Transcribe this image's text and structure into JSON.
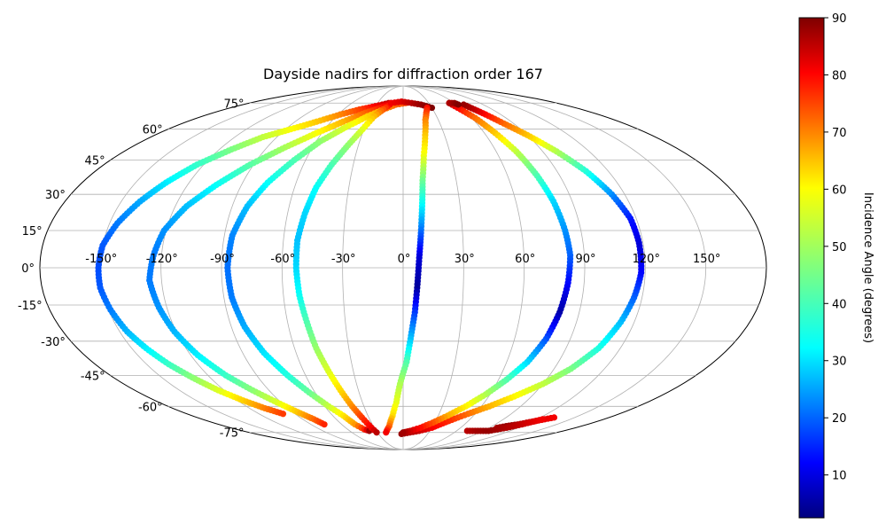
{
  "chart_data": {
    "type": "scatter",
    "projection": "mollweide",
    "title": "Dayside nadirs for diffraction order 167",
    "grid": true,
    "colormap": "jet",
    "colorbar": {
      "label": "Incidence Angle (degrees)",
      "range": [
        2.5,
        90
      ],
      "ticks": [
        "10",
        "20",
        "30",
        "40",
        "50",
        "60",
        "70",
        "80",
        "90"
      ],
      "tick_values": [
        10,
        20,
        30,
        40,
        50,
        60,
        70,
        80,
        90
      ],
      "placement": "right"
    },
    "lon_ticks": [
      "-150°",
      "-120°",
      "-90°",
      "-60°",
      "-30°",
      "0°",
      "30°",
      "60°",
      "90°",
      "120°",
      "150°"
    ],
    "lon_tick_values": [
      -150,
      -120,
      -90,
      -60,
      -30,
      0,
      30,
      60,
      90,
      120,
      150
    ],
    "lat_ticks": [
      "75°",
      "60°",
      "45°",
      "30°",
      "15°",
      "0°",
      "-15°",
      "-30°",
      "-45°",
      "-60°",
      "-75°"
    ],
    "lat_tick_values": [
      75,
      60,
      45,
      30,
      15,
      0,
      -15,
      -30,
      -45,
      -60,
      -75
    ],
    "series": [
      {
        "points": [
          [
            -17,
            75,
            85
          ],
          [
            -30,
            73,
            80
          ],
          [
            -44,
            71,
            74
          ],
          [
            -58,
            68,
            68
          ],
          [
            -72,
            64,
            62
          ],
          [
            -86,
            60,
            57
          ],
          [
            -100,
            56,
            52
          ],
          [
            -112,
            50,
            46
          ],
          [
            -124,
            43,
            40
          ],
          [
            -133,
            35,
            34
          ],
          [
            -140,
            27,
            28
          ],
          [
            -146,
            18,
            24
          ],
          [
            -150,
            9,
            21
          ],
          [
            -151,
            0,
            20
          ],
          [
            -151,
            -8,
            21
          ],
          [
            -149,
            -17,
            24
          ],
          [
            -146,
            -26,
            29
          ],
          [
            -142,
            -33,
            34
          ],
          [
            -137,
            -40,
            40
          ],
          [
            -131,
            -46,
            47
          ],
          [
            -124,
            -52,
            54
          ],
          [
            -116,
            -57,
            61
          ],
          [
            -108,
            -61,
            68
          ],
          [
            -100,
            -64,
            74
          ]
        ]
      },
      {
        "points": [
          [
            -14,
            75,
            83
          ],
          [
            -24,
            72,
            77
          ],
          [
            -36,
            69,
            71
          ],
          [
            -50,
            64,
            64
          ],
          [
            -64,
            58,
            57
          ],
          [
            -78,
            51,
            50
          ],
          [
            -92,
            43,
            43
          ],
          [
            -104,
            34,
            36
          ],
          [
            -114,
            25,
            30
          ],
          [
            -121,
            15,
            26
          ],
          [
            -124,
            5,
            24
          ],
          [
            -126,
            -5,
            24
          ],
          [
            -124,
            -16,
            26
          ],
          [
            -121,
            -26,
            29
          ],
          [
            -116,
            -36,
            34
          ],
          [
            -109,
            -45,
            40
          ],
          [
            -101,
            -52,
            47
          ],
          [
            -93,
            -58,
            54
          ],
          [
            -86,
            -63,
            62
          ],
          [
            -80,
            -67,
            70
          ],
          [
            -77,
            -70,
            76
          ]
        ]
      },
      {
        "points": [
          [
            3,
            75,
            72
          ],
          [
            -8,
            74,
            71
          ],
          [
            -20,
            71,
            66
          ],
          [
            -32,
            67,
            61
          ],
          [
            -45,
            61,
            55
          ],
          [
            -57,
            54,
            48
          ],
          [
            -67,
            45,
            42
          ],
          [
            -76,
            35,
            36
          ],
          [
            -82,
            25,
            30
          ],
          [
            -86,
            13,
            25
          ],
          [
            -87,
            0,
            23
          ],
          [
            -86,
            -12,
            24
          ],
          [
            -83,
            -24,
            28
          ],
          [
            -78,
            -35,
            33
          ],
          [
            -71,
            -45,
            38
          ],
          [
            -64,
            -53,
            44
          ],
          [
            -57,
            -60,
            52
          ],
          [
            -51,
            -65,
            59
          ],
          [
            -47,
            -70,
            66
          ],
          [
            -42,
            -73,
            76
          ],
          [
            -38,
            -74,
            87
          ]
        ]
      },
      {
        "points": [
          [
            -15,
            74,
            80
          ],
          [
            -20,
            71,
            72
          ],
          [
            -26,
            67,
            63
          ],
          [
            -31,
            60,
            55
          ],
          [
            -37,
            52,
            48
          ],
          [
            -43,
            43,
            42
          ],
          [
            -48,
            33,
            36
          ],
          [
            -51,
            22,
            32
          ],
          [
            -53,
            11,
            30
          ],
          [
            -53,
            0,
            32
          ],
          [
            -52,
            -11,
            36
          ],
          [
            -50,
            -22,
            42
          ],
          [
            -48,
            -33,
            48
          ],
          [
            -45,
            -43,
            54
          ],
          [
            -42,
            -52,
            60
          ],
          [
            -39,
            -60,
            67
          ],
          [
            -36,
            -66,
            74
          ],
          [
            -33,
            -72,
            80
          ],
          [
            -31,
            -75,
            85
          ]
        ]
      },
      {
        "points": [
          [
            -14,
            75,
            80
          ],
          [
            -2,
            76,
            82
          ],
          [
            10,
            75,
            85
          ],
          [
            20,
            74,
            88
          ],
          [
            30,
            72,
            90
          ]
        ]
      },
      {
        "points": [
          [
            25,
            72,
            78
          ],
          [
            22,
            69,
            74
          ],
          [
            19,
            65,
            68
          ],
          [
            16,
            57,
            62
          ],
          [
            13,
            47,
            56
          ],
          [
            11,
            36,
            45
          ],
          [
            10,
            25,
            35
          ],
          [
            9,
            14,
            22
          ],
          [
            8,
            4,
            10
          ],
          [
            7,
            -8,
            5
          ],
          [
            6,
            -18,
            18
          ],
          [
            4,
            -29,
            30
          ],
          [
            2,
            -39,
            42
          ],
          [
            -2,
            -49,
            50
          ],
          [
            -5,
            -58,
            55
          ],
          [
            -9,
            -65,
            60
          ],
          [
            -14,
            -71,
            70
          ],
          [
            -20,
            -75,
            80
          ]
        ]
      },
      {
        "points": [
          [
            -2,
            -76,
            88
          ],
          [
            8,
            -75,
            86
          ],
          [
            18,
            -74,
            84
          ],
          [
            30,
            -72,
            80
          ],
          [
            42,
            -68,
            76
          ],
          [
            54,
            -64,
            70
          ],
          [
            66,
            -60,
            64
          ],
          [
            78,
            -55,
            58
          ],
          [
            90,
            -49,
            52
          ],
          [
            100,
            -42,
            46
          ],
          [
            108,
            -33,
            38
          ],
          [
            113,
            -22,
            30
          ],
          [
            116,
            -12,
            22
          ],
          [
            118,
            -2,
            14
          ],
          [
            118,
            10,
            10
          ],
          [
            117,
            20,
            15
          ],
          [
            113,
            30,
            25
          ],
          [
            107,
            40,
            38
          ],
          [
            99,
            49,
            50
          ],
          [
            90,
            57,
            62
          ],
          [
            82,
            63,
            70
          ],
          [
            76,
            68,
            78
          ],
          [
            72,
            71,
            84
          ],
          [
            68,
            74,
            88
          ]
        ]
      },
      {
        "points": [
          [
            98,
            -72,
            86
          ],
          [
            104,
            -71,
            88
          ],
          [
            112,
            -70,
            86
          ],
          [
            122,
            -68,
            82
          ],
          [
            132,
            -66,
            80
          ]
        ]
      },
      {
        "points": [
          [
            72,
            -74,
            85
          ],
          [
            84,
            -74,
            87
          ],
          [
            96,
            -74,
            88
          ],
          [
            108,
            -72,
            86
          ],
          [
            116,
            -70,
            84
          ],
          [
            125,
            -67,
            80
          ]
        ]
      },
      {
        "points": [
          [
            54,
            75,
            85
          ],
          [
            58,
            71,
            78
          ],
          [
            63,
            66,
            70
          ],
          [
            68,
            58,
            62
          ],
          [
            73,
            49,
            52
          ],
          [
            77,
            38,
            42
          ],
          [
            80,
            27,
            32
          ],
          [
            82,
            15,
            26
          ],
          [
            83,
            5,
            22
          ],
          [
            82,
            -6,
            14
          ],
          [
            80,
            -18,
            6
          ],
          [
            77,
            -29,
            20
          ],
          [
            72,
            -39,
            32
          ],
          [
            65,
            -47,
            42
          ],
          [
            57,
            -54,
            50
          ],
          [
            48,
            -60,
            58
          ],
          [
            38,
            -65,
            64
          ],
          [
            28,
            -69,
            72
          ],
          [
            18,
            -72,
            78
          ],
          [
            8,
            -74,
            83
          ],
          [
            0,
            -75,
            87
          ]
        ]
      },
      {
        "points": [
          [
            54,
            75,
            86
          ],
          [
            60,
            75,
            88
          ],
          [
            62,
            74,
            90
          ]
        ]
      }
    ]
  }
}
